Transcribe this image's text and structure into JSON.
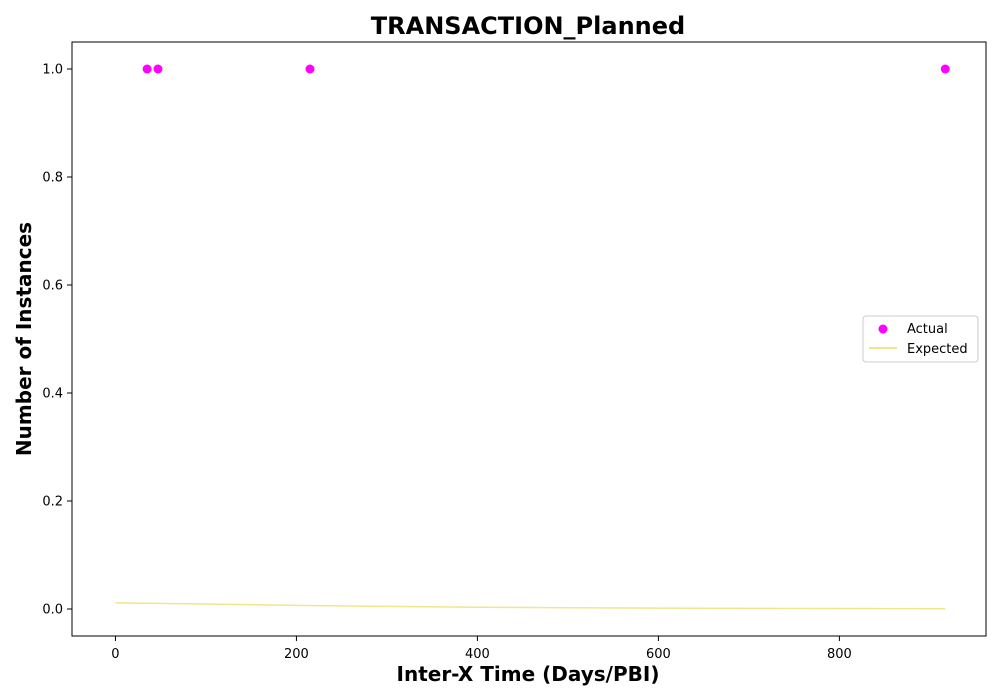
{
  "chart_data": {
    "type": "scatter",
    "title": "TRANSACTION_Planned",
    "xlabel": "Inter-X Time (Days/PBI)",
    "ylabel": "Number of Instances",
    "xlim": [
      -48,
      962
    ],
    "ylim": [
      -0.05,
      1.05
    ],
    "x_ticks": [
      0,
      200,
      400,
      600,
      800
    ],
    "y_ticks": [
      0.0,
      0.2,
      0.4,
      0.6,
      0.8,
      1.0
    ],
    "x_tick_labels": [
      "0",
      "200",
      "400",
      "600",
      "800"
    ],
    "y_tick_labels": [
      "0.0",
      "0.2",
      "0.4",
      "0.6",
      "0.8",
      "1.0"
    ],
    "grid": false,
    "legend_position": "center-right",
    "series": [
      {
        "name": "Actual",
        "kind": "scatter",
        "color": "#ff00ff",
        "x": [
          35,
          47,
          215,
          917
        ],
        "y": [
          1.0,
          1.0,
          1.0,
          1.0
        ]
      },
      {
        "name": "Expected",
        "kind": "line",
        "color": "#f0e68c",
        "x": [
          0,
          100,
          200,
          300,
          400,
          500,
          600,
          700,
          800,
          917
        ],
        "y": [
          0.0115,
          0.0092,
          0.0068,
          0.0048,
          0.0033,
          0.0023,
          0.0016,
          0.0012,
          0.0009,
          0.0005
        ]
      }
    ]
  }
}
